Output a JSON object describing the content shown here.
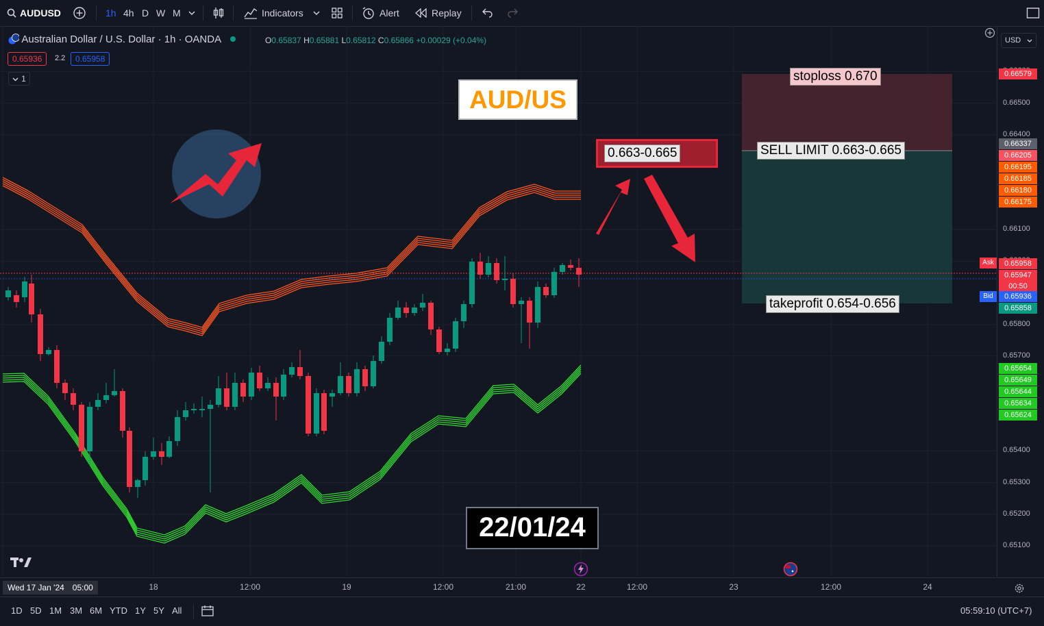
{
  "toolbar": {
    "symbol": "AUDUSD",
    "intervals": [
      "1h",
      "4h",
      "D",
      "W",
      "M"
    ],
    "active_interval": "1h",
    "indicators_label": "Indicators",
    "alert_label": "Alert",
    "replay_label": "Replay"
  },
  "legend": {
    "title": "Australian Dollar / U.S. Dollar · 1h · OANDA",
    "open": "0.65837",
    "high": "0.65881",
    "low": "0.65812",
    "close": "0.65866",
    "change": "+0.00029 (+0.04%)",
    "sell_price": "0.65936",
    "spread": "2.2",
    "buy_price": "0.65958",
    "collapse_count": "1"
  },
  "annotations": {
    "pair_title": "AUD/US",
    "entry_zone": "0.663-0.665",
    "date_label": "22/01/24",
    "stoploss": "stoploss 0.670",
    "sell_limit": "SELL LIMIT 0.663-0.665",
    "takeprofit": "takeprofit 0.654-0.656"
  },
  "price_axis": {
    "currency": "USD",
    "levels": [
      "0.66600",
      "0.66500",
      "0.66400",
      "0.66100",
      "0.66000",
      "0.65800",
      "0.65700",
      "0.65400",
      "0.65300",
      "0.65200",
      "0.65100"
    ],
    "tags": [
      {
        "text": "0.66579",
        "color": "#f23645"
      },
      {
        "text": "0.66337",
        "color": "#5d606b"
      },
      {
        "text": "0.66205",
        "color": "#f7525f"
      },
      {
        "text": "0.66195",
        "color": "#ff5c00"
      },
      {
        "text": "0.66185",
        "color": "#ff5c00"
      },
      {
        "text": "0.66180",
        "color": "#ff5c00"
      },
      {
        "text": "0.66175",
        "color": "#ff5c00"
      },
      {
        "text": "0.65958",
        "color": "#f23645"
      },
      {
        "text": "0.65947",
        "color": "#f23645"
      },
      {
        "text": "00:50",
        "color": "#f23645"
      },
      {
        "text": "0.65936",
        "color": "#2962ff"
      },
      {
        "text": "0.65858",
        "color": "#089981"
      },
      {
        "text": "0.65654",
        "color": "#22c922"
      },
      {
        "text": "0.65649",
        "color": "#22c922"
      },
      {
        "text": "0.65644",
        "color": "#22c922"
      },
      {
        "text": "0.65634",
        "color": "#22c922"
      },
      {
        "text": "0.65624",
        "color": "#22c922"
      }
    ],
    "ask_label": "Ask",
    "bid_label": "Bid"
  },
  "time_axis": {
    "start_label": "Wed 17 Jan '24",
    "start_time": "05:00",
    "labels": [
      "18",
      "12:00",
      "19",
      "12:00",
      "21:00",
      "22",
      "12:00",
      "23",
      "12:00",
      "24"
    ]
  },
  "bottombar": {
    "ranges": [
      "1D",
      "5D",
      "1M",
      "3M",
      "6M",
      "YTD",
      "1Y",
      "5Y",
      "All"
    ],
    "clock": "05:59:10 (UTC+7)"
  },
  "colors": {
    "bull": "#089981",
    "bear": "#f23645",
    "upper_band": "#ff5722",
    "lower_band": "#33dd33",
    "background": "#131722"
  }
}
